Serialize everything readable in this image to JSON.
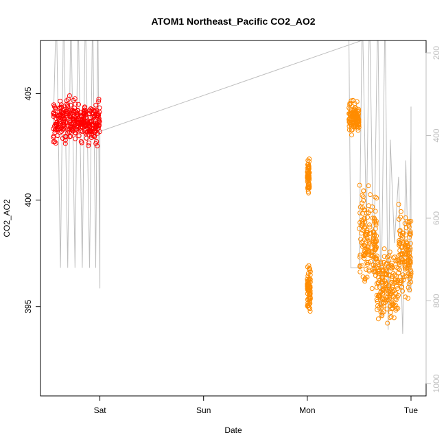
{
  "chart_data": {
    "type": "scatter",
    "title": "ATOM1 Northeast_Pacific CO2_AO2",
    "xlabel": "Date",
    "ylabel": "CO2_AO2",
    "x_ticks": [
      "Sat",
      "Sun",
      "Mon",
      "Tue"
    ],
    "y_ticks": [
      "395",
      "400",
      "405"
    ],
    "y_range": [
      390.8,
      407.5
    ],
    "y2_ticks": [
      "200",
      "400",
      "600",
      "800",
      "1000"
    ],
    "y2_range": [
      1030,
      170
    ],
    "y2_inverted": true,
    "grid": false,
    "colors": {
      "red": "#ff0000",
      "orange": "#ff8c00",
      "altitude_line": "#bebebe",
      "axis": "#000000",
      "right_axis": "#bdbdbd"
    },
    "series": [
      {
        "color": "red",
        "marker": "open-circle",
        "clusters": [
          {
            "x": [
              -0.45,
              0.0
            ],
            "ymin": 401.5,
            "ymax": 407.1,
            "center": 403.7,
            "spread": 0.9
          }
        ]
      },
      {
        "color": "orange",
        "marker": "open-circle",
        "clusters": [
          {
            "x": [
              0.0,
              0.02
            ],
            "ymin": 399.3,
            "ymax": 402.4,
            "center": 401.2,
            "spread": 0.8
          },
          {
            "x": [
              0.0,
              0.03
            ],
            "ymin": 393.2,
            "ymax": 397.4,
            "center": 395.8,
            "spread": 1.0
          },
          {
            "x": [
              -0.6,
              -0.5
            ],
            "ymin": 402.0,
            "ymax": 405.5,
            "center": 403.8,
            "spread": 0.7
          },
          {
            "x": [
              -0.5,
              -0.33
            ],
            "ymin": 394.4,
            "ymax": 402.3,
            "center": 398.2,
            "spread": 2.0
          },
          {
            "x": [
              -0.33,
              -0.12
            ],
            "ymin": 392.5,
            "ymax": 401.0,
            "center": 396.0,
            "spread": 1.5
          },
          {
            "x": [
              -0.12,
              0.0
            ],
            "ymin": 391.2,
            "ymax": 402.0,
            "center": 397.5,
            "spread": 2.0
          }
        ]
      }
    ],
    "altitude_series": {
      "color": "altitude_line",
      "axis": "right",
      "points": [
        [
          -0.45,
          380
        ],
        [
          -0.42,
          90
        ],
        [
          -0.38,
          720
        ],
        [
          -0.35,
          90
        ],
        [
          -0.31,
          720
        ],
        [
          -0.28,
          90
        ],
        [
          -0.24,
          720
        ],
        [
          -0.21,
          90
        ],
        [
          -0.17,
          720
        ],
        [
          -0.14,
          90
        ],
        [
          -0.1,
          720
        ],
        [
          -0.07,
          90
        ],
        [
          -0.04,
          720
        ],
        [
          -0.02,
          90
        ],
        [
          0.0,
          770
        ],
        [
          0.0,
          390
        ],
        [
          1.15,
          120
        ],
        [
          -0.6,
          120
        ],
        [
          -0.58,
          720
        ],
        [
          -0.5,
          720
        ],
        [
          -0.47,
          90
        ],
        [
          -0.43,
          620
        ],
        [
          -0.4,
          90
        ],
        [
          -0.36,
          740
        ],
        [
          -0.32,
          90
        ],
        [
          -0.29,
          840
        ],
        [
          -0.25,
          90
        ],
        [
          -0.22,
          870
        ],
        [
          -0.2,
          410
        ],
        [
          -0.16,
          660
        ],
        [
          -0.12,
          500
        ],
        [
          -0.08,
          880
        ],
        [
          -0.05,
          460
        ],
        [
          -0.02,
          780
        ],
        [
          0.0,
          410
        ],
        [
          0.0,
          330
        ],
        [
          0.0,
          780
        ]
      ]
    }
  }
}
